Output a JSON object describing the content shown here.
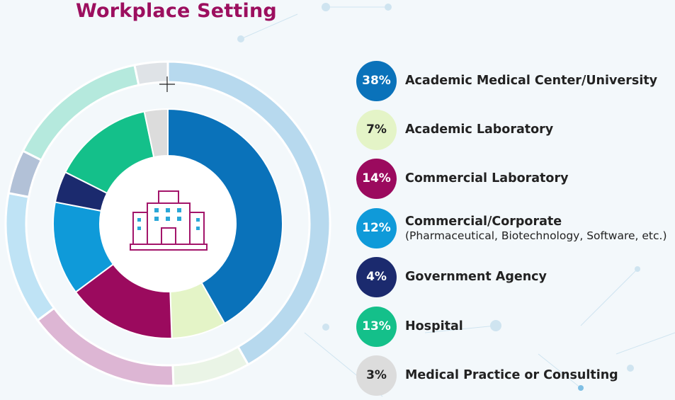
{
  "title": "Workplace Setting",
  "chart_data": {
    "type": "pie",
    "title": "Workplace Setting",
    "categories": [
      "Academic Medical Center/University",
      "Academic Laboratory",
      "Commercial Laboratory",
      "Commercial/Corporate",
      "Government Agency",
      "Hospital",
      "Medical Practice or Consulting"
    ],
    "sublabels": [
      "",
      "",
      "",
      "(Pharmaceutical, Biotechnology, Software, etc.)",
      "",
      "",
      ""
    ],
    "values": [
      38,
      7,
      14,
      12,
      4,
      13,
      3
    ],
    "value_labels": [
      "38%",
      "7%",
      "14%",
      "12%",
      "4%",
      "13%",
      "3%"
    ],
    "colors": [
      "#0a72ba",
      "#e4f4c7",
      "#9b0a5e",
      "#0f9ad9",
      "#1b2a6e",
      "#14c08a",
      "#dcdcdc"
    ],
    "outer_ring_colors": [
      "#b7d9ee",
      "#eaf4e6",
      "#ddb6d4",
      "#bfe3f5",
      "#b2c1d7",
      "#b5e9dd",
      "#dfe3e7"
    ],
    "badge_text_colors": [
      "#ffffff",
      "#222222",
      "#ffffff",
      "#ffffff",
      "#ffffff",
      "#ffffff",
      "#222222"
    ],
    "legend_placement": "right",
    "center_icon": "building-icon"
  }
}
